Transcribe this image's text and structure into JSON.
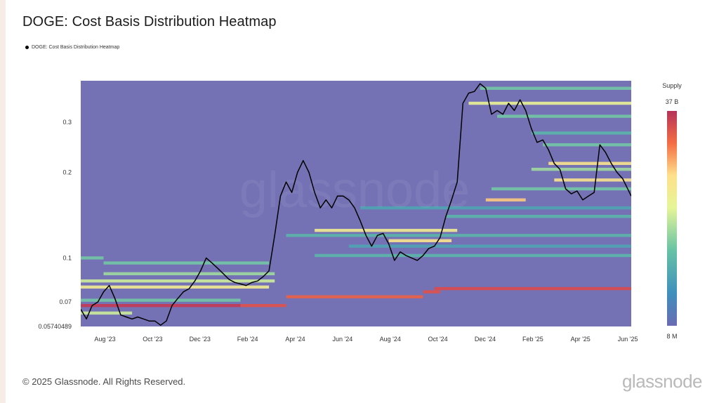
{
  "title": "DOGE: Cost Basis Distribution Heatmap",
  "legend_label": "DOGE: Cost Basis Distribution Heatmap",
  "colorbar": {
    "title": "Supply",
    "max_label": "37 B",
    "min_label": "8 M"
  },
  "footer": {
    "copyright": "© 2025 Glassnode. All Rights Reserved.",
    "brand": "glassnode",
    "watermark": "glassnode"
  },
  "colors": {
    "background": "#7472b4",
    "price_line": "#000000",
    "scale": [
      "#6a6bb3",
      "#3f8fbd",
      "#66c2a5",
      "#e6f598",
      "#fee08b",
      "#f46d43",
      "#d53e4f",
      "#b5335a"
    ]
  },
  "chart_data": {
    "type": "heatmap",
    "title": "DOGE: Cost Basis Distribution Heatmap",
    "y_scale": "log",
    "ylim": [
      0.05740489,
      0.42
    ],
    "y_ticks": [
      {
        "label": "0.05740489",
        "value": 0.05740489
      },
      {
        "label": "0.07",
        "value": 0.07
      },
      {
        "label": "0.1",
        "value": 0.1
      },
      {
        "label": "0.2",
        "value": 0.2
      },
      {
        "label": "0.3",
        "value": 0.3
      }
    ],
    "x_range": [
      2023.54,
      2025.47
    ],
    "x_ticks": [
      {
        "label": "Aug '23",
        "value": 2023.625
      },
      {
        "label": "Oct '23",
        "value": 2023.792
      },
      {
        "label": "Dec '23",
        "value": 2023.958
      },
      {
        "label": "Feb '24",
        "value": 2024.125
      },
      {
        "label": "Apr '24",
        "value": 2024.292
      },
      {
        "label": "Jun '24",
        "value": 2024.458
      },
      {
        "label": "Aug '24",
        "value": 2024.625
      },
      {
        "label": "Oct '24",
        "value": 2024.792
      },
      {
        "label": "Dec '24",
        "value": 2024.958
      },
      {
        "label": "Feb '25",
        "value": 2025.125
      },
      {
        "label": "Apr '25",
        "value": 2025.292
      },
      {
        "label": "Jun '25",
        "value": 2025.458
      }
    ],
    "price_series": {
      "name": "DOGE price (USD)",
      "points": [
        [
          2023.54,
          0.066
        ],
        [
          2023.56,
          0.061
        ],
        [
          2023.58,
          0.068
        ],
        [
          2023.6,
          0.07
        ],
        [
          2023.62,
          0.076
        ],
        [
          2023.64,
          0.08
        ],
        [
          2023.66,
          0.072
        ],
        [
          2023.68,
          0.063
        ],
        [
          2023.7,
          0.062
        ],
        [
          2023.72,
          0.061
        ],
        [
          2023.74,
          0.062
        ],
        [
          2023.76,
          0.061
        ],
        [
          2023.78,
          0.06
        ],
        [
          2023.8,
          0.06
        ],
        [
          2023.82,
          0.058
        ],
        [
          2023.84,
          0.06
        ],
        [
          2023.86,
          0.068
        ],
        [
          2023.88,
          0.072
        ],
        [
          2023.9,
          0.076
        ],
        [
          2023.92,
          0.078
        ],
        [
          2023.94,
          0.083
        ],
        [
          2023.96,
          0.09
        ],
        [
          2023.98,
          0.1
        ],
        [
          2024.0,
          0.096
        ],
        [
          2024.02,
          0.092
        ],
        [
          2024.04,
          0.088
        ],
        [
          2024.06,
          0.084
        ],
        [
          2024.08,
          0.082
        ],
        [
          2024.1,
          0.081
        ],
        [
          2024.12,
          0.08
        ],
        [
          2024.14,
          0.082
        ],
        [
          2024.16,
          0.083
        ],
        [
          2024.18,
          0.086
        ],
        [
          2024.2,
          0.09
        ],
        [
          2024.22,
          0.12
        ],
        [
          2024.24,
          0.165
        ],
        [
          2024.26,
          0.185
        ],
        [
          2024.28,
          0.17
        ],
        [
          2024.3,
          0.2
        ],
        [
          2024.32,
          0.22
        ],
        [
          2024.34,
          0.2
        ],
        [
          2024.36,
          0.17
        ],
        [
          2024.38,
          0.15
        ],
        [
          2024.4,
          0.16
        ],
        [
          2024.42,
          0.15
        ],
        [
          2024.44,
          0.165
        ],
        [
          2024.46,
          0.165
        ],
        [
          2024.48,
          0.16
        ],
        [
          2024.5,
          0.15
        ],
        [
          2024.52,
          0.135
        ],
        [
          2024.54,
          0.12
        ],
        [
          2024.56,
          0.11
        ],
        [
          2024.58,
          0.12
        ],
        [
          2024.6,
          0.122
        ],
        [
          2024.62,
          0.112
        ],
        [
          2024.64,
          0.098
        ],
        [
          2024.66,
          0.105
        ],
        [
          2024.68,
          0.102
        ],
        [
          2024.7,
          0.1
        ],
        [
          2024.72,
          0.098
        ],
        [
          2024.74,
          0.102
        ],
        [
          2024.76,
          0.108
        ],
        [
          2024.78,
          0.11
        ],
        [
          2024.8,
          0.118
        ],
        [
          2024.82,
          0.14
        ],
        [
          2024.84,
          0.16
        ],
        [
          2024.86,
          0.185
        ],
        [
          2024.88,
          0.35
        ],
        [
          2024.9,
          0.38
        ],
        [
          2024.92,
          0.385
        ],
        [
          2024.94,
          0.41
        ],
        [
          2024.96,
          0.395
        ],
        [
          2024.98,
          0.32
        ],
        [
          2025.0,
          0.33
        ],
        [
          2025.02,
          0.32
        ],
        [
          2025.04,
          0.35
        ],
        [
          2025.06,
          0.33
        ],
        [
          2025.08,
          0.36
        ],
        [
          2025.1,
          0.33
        ],
        [
          2025.12,
          0.285
        ],
        [
          2025.14,
          0.255
        ],
        [
          2025.16,
          0.26
        ],
        [
          2025.18,
          0.24
        ],
        [
          2025.2,
          0.215
        ],
        [
          2025.22,
          0.205
        ],
        [
          2025.24,
          0.175
        ],
        [
          2025.26,
          0.168
        ],
        [
          2025.28,
          0.172
        ],
        [
          2025.3,
          0.16
        ],
        [
          2025.32,
          0.165
        ],
        [
          2025.34,
          0.17
        ],
        [
          2025.36,
          0.25
        ],
        [
          2025.38,
          0.235
        ],
        [
          2025.4,
          0.215
        ],
        [
          2025.42,
          0.2
        ],
        [
          2025.44,
          0.19
        ],
        [
          2025.47,
          0.165
        ]
      ]
    },
    "supply_bands": [
      {
        "price": 0.395,
        "x0": 2024.94,
        "x1": 2025.47,
        "intensity": 0.3
      },
      {
        "price": 0.35,
        "x0": 2024.9,
        "x1": 2025.47,
        "intensity": 0.45
      },
      {
        "price": 0.315,
        "x0": 2025.0,
        "x1": 2025.47,
        "intensity": 0.3
      },
      {
        "price": 0.275,
        "x0": 2025.12,
        "x1": 2025.47,
        "intensity": 0.25
      },
      {
        "price": 0.25,
        "x0": 2025.16,
        "x1": 2025.47,
        "intensity": 0.3
      },
      {
        "price": 0.215,
        "x0": 2025.18,
        "x1": 2025.47,
        "intensity": 0.55
      },
      {
        "price": 0.205,
        "x0": 2025.12,
        "x1": 2025.47,
        "intensity": 0.35
      },
      {
        "price": 0.188,
        "x0": 2025.2,
        "x1": 2025.47,
        "intensity": 0.55
      },
      {
        "price": 0.175,
        "x0": 2024.98,
        "x1": 2025.47,
        "intensity": 0.3
      },
      {
        "price": 0.16,
        "x0": 2024.96,
        "x1": 2025.1,
        "intensity": 0.6
      },
      {
        "price": 0.15,
        "x0": 2024.52,
        "x1": 2025.47,
        "intensity": 0.2
      },
      {
        "price": 0.14,
        "x0": 2024.82,
        "x1": 2025.47,
        "intensity": 0.25
      },
      {
        "price": 0.125,
        "x0": 2024.36,
        "x1": 2024.86,
        "intensity": 0.5
      },
      {
        "price": 0.12,
        "x0": 2024.26,
        "x1": 2025.47,
        "intensity": 0.25
      },
      {
        "price": 0.115,
        "x0": 2024.62,
        "x1": 2024.84,
        "intensity": 0.55
      },
      {
        "price": 0.11,
        "x0": 2024.48,
        "x1": 2025.47,
        "intensity": 0.2
      },
      {
        "price": 0.102,
        "x0": 2024.36,
        "x1": 2025.47,
        "intensity": 0.25
      },
      {
        "price": 0.096,
        "x0": 2023.62,
        "x1": 2024.2,
        "intensity": 0.3
      },
      {
        "price": 0.1,
        "x0": 2023.54,
        "x1": 2023.62,
        "intensity": 0.3
      },
      {
        "price": 0.088,
        "x0": 2023.62,
        "x1": 2024.22,
        "intensity": 0.35
      },
      {
        "price": 0.083,
        "x0": 2023.54,
        "x1": 2024.22,
        "intensity": 0.4
      },
      {
        "price": 0.079,
        "x0": 2023.54,
        "x1": 2024.2,
        "intensity": 0.5
      },
      {
        "price": 0.078,
        "x0": 2024.78,
        "x1": 2025.47,
        "intensity": 0.82
      },
      {
        "price": 0.076,
        "x0": 2024.74,
        "x1": 2024.8,
        "intensity": 0.8
      },
      {
        "price": 0.073,
        "x0": 2024.26,
        "x1": 2024.74,
        "intensity": 0.75
      },
      {
        "price": 0.071,
        "x0": 2023.54,
        "x1": 2024.1,
        "intensity": 0.3
      },
      {
        "price": 0.068,
        "x0": 2023.54,
        "x1": 2024.1,
        "intensity": 0.92
      },
      {
        "price": 0.068,
        "x0": 2024.1,
        "x1": 2024.26,
        "intensity": 0.8
      },
      {
        "price": 0.064,
        "x0": 2023.54,
        "x1": 2023.72,
        "intensity": 0.4
      }
    ]
  }
}
